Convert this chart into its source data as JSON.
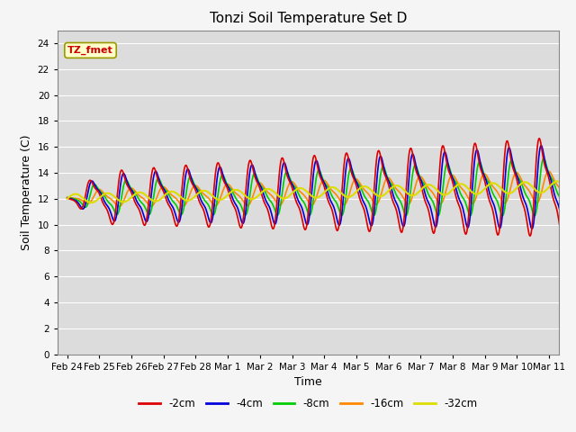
{
  "title": "Tonzi Soil Temperature Set D",
  "xlabel": "Time",
  "ylabel": "Soil Temperature (C)",
  "xlim_start": -0.3,
  "xlim_end": 15.3,
  "ylim": [
    0,
    25
  ],
  "yticks": [
    0,
    2,
    4,
    6,
    8,
    10,
    12,
    14,
    16,
    18,
    20,
    22,
    24
  ],
  "x_tick_labels": [
    "Feb 24",
    "Feb 25",
    "Feb 26",
    "Feb 27",
    "Feb 28",
    "Mar 1",
    "Mar 2",
    "Mar 3",
    "Mar 4",
    "Mar 5",
    "Mar 6",
    "Mar 7",
    "Mar 8",
    "Mar 9",
    "Mar 10",
    "Mar 11"
  ],
  "x_tick_positions": [
    0,
    1,
    2,
    3,
    4,
    5,
    6,
    7,
    8,
    9,
    10,
    11,
    12,
    13,
    14,
    15
  ],
  "plot_bg_color": "#dcdcdc",
  "fig_bg_color": "#f5f5f5",
  "grid_color": "#ffffff",
  "series": {
    "neg2cm": {
      "color": "#dd0000",
      "label": "-2cm",
      "linewidth": 1.2
    },
    "neg4cm": {
      "color": "#0000dd",
      "label": "-4cm",
      "linewidth": 1.2
    },
    "neg8cm": {
      "color": "#00cc00",
      "label": "-8cm",
      "linewidth": 1.2
    },
    "neg16cm": {
      "color": "#ff8800",
      "label": "-16cm",
      "linewidth": 1.2
    },
    "neg32cm": {
      "color": "#dddd00",
      "label": "-32cm",
      "linewidth": 1.5
    }
  },
  "annotation_text": "TZ_fmet",
  "annotation_bgcolor": "#ffffcc",
  "annotation_edgecolor": "#999900",
  "annotation_textcolor": "#cc0000",
  "annotation_fontsize": 8
}
